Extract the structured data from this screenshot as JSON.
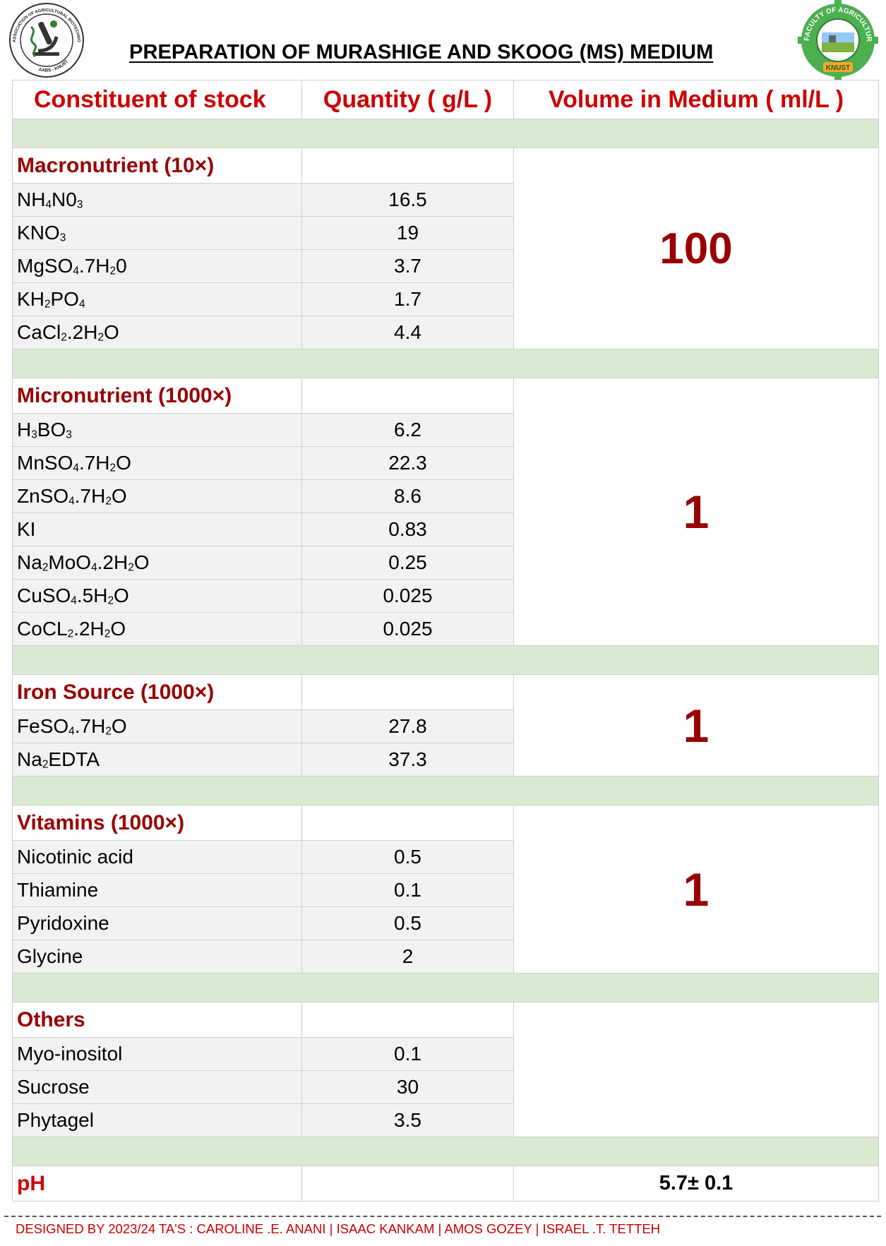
{
  "logos": {
    "left_text_top": "ASSOCIATION OF AGRICULTURAL BIOTECHNOLOGY STUDENTS",
    "left_text_bottom": "AABS - KNUST",
    "right_text_top": "FACULTY OF AGRICULTURE",
    "right_text_bottom": "KNUST"
  },
  "title": "PREPARATION OF MURASHIGE AND SKOOG (MS) MEDIUM",
  "headers": {
    "constituent": "Constituent of stock",
    "quantity": "Quantity ( g/L )",
    "volume": "Volume in Medium ( ml/L )"
  },
  "sections": [
    {
      "label": "Macronutrient (10×)",
      "volume": "100",
      "items": [
        {
          "name": "NH₄N0₃",
          "qty": "16.5"
        },
        {
          "name": "KNO₃",
          "qty": "19"
        },
        {
          "name": "MgSO₄.7H₂0",
          "qty": "3.7"
        },
        {
          "name": "KH₂PO₄",
          "qty": "1.7"
        },
        {
          "name": "CaCl₂.2H₂O",
          "qty": "4.4"
        }
      ]
    },
    {
      "label": "Micronutrient (1000×)",
      "volume": "1",
      "items": [
        {
          "name": "H₃BO₃",
          "qty": "6.2"
        },
        {
          "name": "MnSO₄.7H₂O",
          "qty": "22.3"
        },
        {
          "name": "ZnSO₄.7H₂O",
          "qty": "8.6"
        },
        {
          "name": "KI",
          "qty": "0.83"
        },
        {
          "name": "Na₂MoO₄.2H₂O",
          "qty": "0.25"
        },
        {
          "name": "CuSO₄.5H₂O",
          "qty": "0.025"
        },
        {
          "name": "CoCL₂.2H₂O",
          "qty": "0.025"
        }
      ]
    },
    {
      "label": "Iron Source (1000×)",
      "volume": "1",
      "items": [
        {
          "name": "FeSO₄.7H₂O",
          "qty": "27.8"
        },
        {
          "name": "Na₂EDTA",
          "qty": "37.3"
        }
      ]
    },
    {
      "label": "Vitamins (1000×)",
      "volume": "1",
      "items": [
        {
          "name": "Nicotinic acid",
          "qty": "0.5"
        },
        {
          "name": "Thiamine",
          "qty": "0.1"
        },
        {
          "name": "Pyridoxine",
          "qty": "0.5"
        },
        {
          "name": "Glycine",
          "qty": "2"
        }
      ]
    },
    {
      "label": "Others",
      "volume": "",
      "items": [
        {
          "name": "Myo-inositol",
          "qty": "0.1"
        },
        {
          "name": "Sucrose",
          "qty": "30"
        },
        {
          "name": "Phytagel",
          "qty": "3.5"
        }
      ]
    }
  ],
  "ph": {
    "label": "pH",
    "value": "5.7± 0.1"
  },
  "footer": "DESIGNED BY 2023/24 TA'S : CAROLINE .E. ANANI | ISAAC KANKAM  | AMOS GOZEY | ISRAEL .T. TETTEH",
  "colors": {
    "header_red": "#cc0000",
    "section_red": "#990000",
    "separator_green": "#d9ead3",
    "cell_gray": "#f2f2f2"
  }
}
